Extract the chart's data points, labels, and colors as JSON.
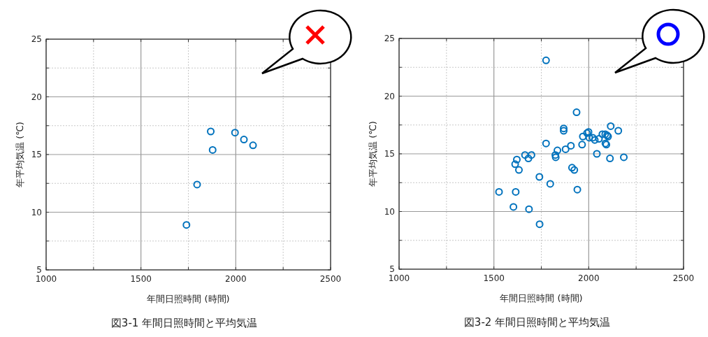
{
  "chart_data": [
    {
      "type": "scatter",
      "title": "図3-1  年間日照時間と平均気温",
      "xlabel": "年間日照時間 (時間)",
      "ylabel": "年平均気温 (℃)",
      "marker": "circle",
      "grid": true,
      "color": "#0072bd",
      "x": [
        1868,
        1878,
        1996,
        2043,
        2091,
        1796,
        1740
      ],
      "values": [
        17.0,
        15.4,
        16.9,
        16.3,
        15.8,
        12.4,
        8.9
      ],
      "xlim": [
        1000,
        2500
      ],
      "ylim": [
        5,
        25
      ],
      "xticks": [
        1000,
        {
          "value": 1250,
          "label": null
        },
        1500,
        {
          "value": 1750,
          "label": null
        },
        2000,
        {
          "value": 2250,
          "label": null
        },
        2500
      ],
      "yticks": [
        5,
        {
          "value": 7.5,
          "label": null
        },
        10,
        {
          "value": 12.5,
          "label": null
        },
        15,
        {
          "value": 17.5,
          "label": null
        },
        20,
        {
          "value": 22.5,
          "label": null
        },
        25
      ]
    },
    {
      "type": "scatter",
      "title": "図3-2  年間日照時間と平均気温",
      "xlabel": "年間日照時間 (時間)",
      "ylabel": "年平均気温 (℃)",
      "marker": "circle",
      "grid": true,
      "color": "#0072bd",
      "x": [
        1775,
        1936,
        2116,
        2156,
        1868,
        1868,
        1999,
        1991,
        1969,
        2003,
        2021,
        2032,
        2054,
        2072,
        2087,
        2097,
        2102,
        2088,
        2093,
        1775,
        1906,
        1965,
        1878,
        1835,
        1824,
        1826,
        2043,
        2112,
        2185,
        1664,
        1698,
        1682,
        1621,
        1612,
        1632,
        1912,
        1924,
        1740,
        1797,
        1527,
        1615,
        1940,
        1603,
        1685,
        1741
      ],
      "values": [
        23.1,
        18.6,
        17.4,
        17.0,
        17.2,
        17.0,
        16.9,
        16.8,
        16.5,
        16.4,
        16.4,
        16.2,
        16.3,
        16.7,
        16.7,
        16.6,
        16.5,
        15.9,
        15.8,
        15.9,
        15.7,
        15.8,
        15.4,
        15.3,
        14.9,
        14.7,
        15.0,
        14.6,
        14.7,
        14.9,
        14.9,
        14.6,
        14.5,
        14.1,
        13.6,
        13.8,
        13.6,
        13.0,
        12.4,
        11.7,
        11.7,
        11.9,
        10.4,
        10.2,
        8.9
      ],
      "xlim": [
        1000,
        2500
      ],
      "ylim": [
        5,
        25
      ],
      "xticks": [
        1000,
        {
          "value": 1250,
          "label": null
        },
        1500,
        {
          "value": 1750,
          "label": null
        },
        2000,
        {
          "value": 2250,
          "label": null
        },
        2500
      ],
      "yticks": [
        5,
        {
          "value": 7.5,
          "label": null
        },
        10,
        {
          "value": 12.5,
          "label": null
        },
        15,
        {
          "value": 17.5,
          "label": null
        },
        20,
        {
          "value": 22.5,
          "label": null
        },
        25
      ]
    }
  ]
}
